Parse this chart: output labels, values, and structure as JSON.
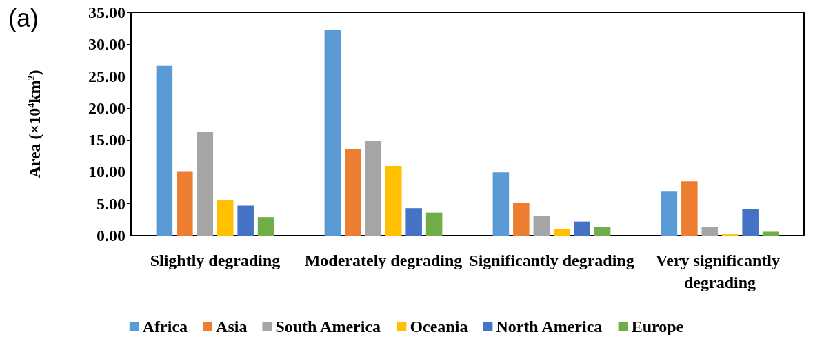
{
  "chart_data": {
    "type": "bar",
    "ylabel": "Area (×10$^{4}$km$^{2}$)",
    "annotations": [
      "(a)"
    ],
    "categories": [
      "Slightly degrading",
      "Moderately degrading",
      "Significantly degrading",
      "Very significantly degrading"
    ],
    "series": [
      {
        "name": "Africa",
        "color": "#5b9bd5",
        "values": [
          26.6,
          32.2,
          9.9,
          7.0
        ]
      },
      {
        "name": "Asia",
        "color": "#ed7d31",
        "values": [
          10.1,
          13.5,
          5.1,
          8.5
        ]
      },
      {
        "name": "South America",
        "color": "#a5a5a5",
        "values": [
          16.3,
          14.8,
          3.1,
          1.4
        ]
      },
      {
        "name": "Oceania",
        "color": "#ffc000",
        "values": [
          5.6,
          10.9,
          1.0,
          0.2
        ]
      },
      {
        "name": "North America",
        "color": "#4472c4",
        "values": [
          4.7,
          4.3,
          2.2,
          4.2
        ]
      },
      {
        "name": "Europe",
        "color": "#70ad47",
        "values": [
          2.9,
          3.6,
          1.3,
          0.6
        ]
      }
    ],
    "ylim": [
      0,
      35
    ],
    "yticks": [
      {
        "value": 0,
        "label": "0.00"
      },
      {
        "value": 5,
        "label": "5.00"
      },
      {
        "value": 10,
        "label": "10.00"
      },
      {
        "value": 15,
        "label": "15.00"
      },
      {
        "value": 20,
        "label": "20.00"
      },
      {
        "value": 25,
        "label": "25.00"
      },
      {
        "value": 30,
        "label": "30.00"
      },
      {
        "value": 35,
        "label": "35.00"
      }
    ],
    "grid": false,
    "legend": "bottom"
  }
}
